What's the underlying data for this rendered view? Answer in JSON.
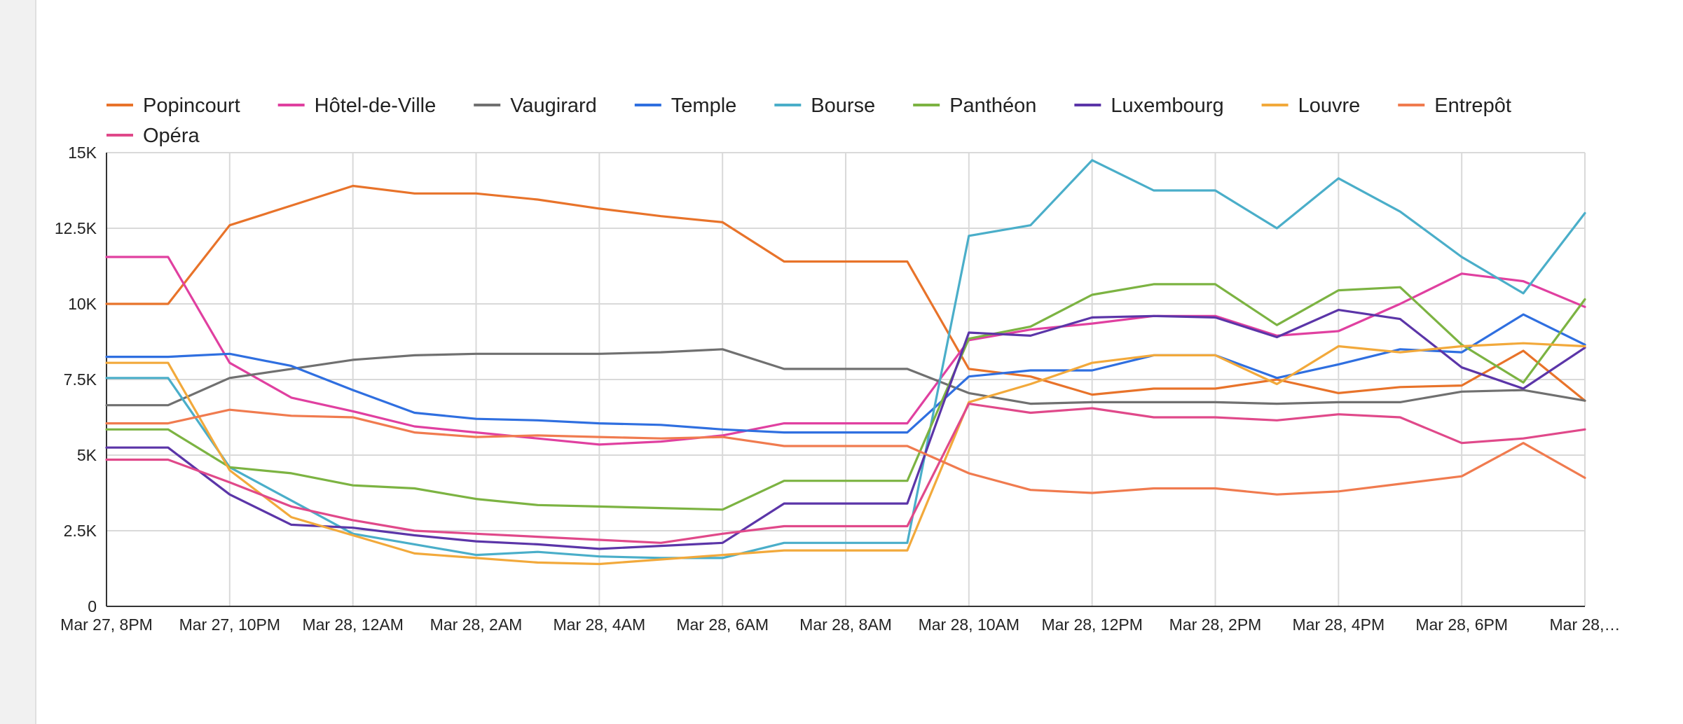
{
  "chart_data": {
    "type": "line",
    "title": "",
    "xlabel": "",
    "ylabel": "",
    "ylim": [
      0,
      15000
    ],
    "y_ticks": [
      0,
      2500,
      5000,
      7500,
      10000,
      12500,
      15000
    ],
    "y_tick_labels": [
      "0",
      "2.5K",
      "5K",
      "7.5K",
      "10K",
      "12.5K",
      "15K"
    ],
    "x": [
      "Mar 27, 8PM",
      "Mar 27, 9PM",
      "Mar 27, 10PM",
      "Mar 27, 11PM",
      "Mar 28, 12AM",
      "Mar 28, 1AM",
      "Mar 28, 2AM",
      "Mar 28, 3AM",
      "Mar 28, 4AM",
      "Mar 28, 5AM",
      "Mar 28, 6AM",
      "Mar 28, 7AM",
      "Mar 28, 8AM",
      "Mar 28, 9AM",
      "Mar 28, 10AM",
      "Mar 28, 11AM",
      "Mar 28, 12PM",
      "Mar 28, 1PM",
      "Mar 28, 2PM",
      "Mar 28, 3PM",
      "Mar 28, 4PM",
      "Mar 28, 5PM",
      "Mar 28, 6PM",
      "Mar 28, 7PM",
      "Mar 28, 8PM"
    ],
    "x_tick_labels": [
      "Mar 27, 8PM",
      "Mar 27, 10PM",
      "Mar 28, 12AM",
      "Mar 28, 2AM",
      "Mar 28, 4AM",
      "Mar 28, 6AM",
      "Mar 28, 8AM",
      "Mar 28, 10AM",
      "Mar 28, 12PM",
      "Mar 28, 2PM",
      "Mar 28, 4PM",
      "Mar 28, 6PM",
      "Mar 28,…"
    ],
    "x_tick_index": [
      0,
      2,
      4,
      6,
      8,
      10,
      12,
      14,
      16,
      18,
      20,
      22,
      24
    ],
    "grid": true,
    "legend_position": "top",
    "series": [
      {
        "name": "Popincourt",
        "color": "#e8732a",
        "values": [
          10000,
          10000,
          12600,
          13250,
          13900,
          13650,
          13650,
          13450,
          13150,
          12900,
          12700,
          11400,
          11400,
          11400,
          7850,
          7600,
          7000,
          7200,
          7200,
          7500,
          7050,
          7250,
          7300,
          8450,
          6800
        ]
      },
      {
        "name": "Hôtel-de-Ville",
        "color": "#e040a0",
        "values": [
          11550,
          11550,
          8050,
          6900,
          6450,
          5950,
          5750,
          5550,
          5350,
          5450,
          5650,
          6050,
          6050,
          6050,
          8800,
          9150,
          9350,
          9600,
          9600,
          8950,
          9100,
          10000,
          11000,
          10750,
          9900
        ]
      },
      {
        "name": "Vaugirard",
        "color": "#707070",
        "values": [
          6650,
          6650,
          7550,
          7850,
          8150,
          8300,
          8350,
          8350,
          8350,
          8400,
          8500,
          7850,
          7850,
          7850,
          7050,
          6700,
          6750,
          6750,
          6750,
          6700,
          6750,
          6750,
          7100,
          7150,
          6800
        ]
      },
      {
        "name": "Temple",
        "color": "#2f6fe0",
        "values": [
          8250,
          8250,
          8350,
          7950,
          7150,
          6400,
          6200,
          6150,
          6050,
          6000,
          5850,
          5750,
          5750,
          5750,
          7600,
          7800,
          7800,
          8300,
          8300,
          7550,
          8000,
          8500,
          8400,
          9650,
          8650
        ]
      },
      {
        "name": "Bourse",
        "color": "#4aaec9",
        "values": [
          7550,
          7550,
          4600,
          3500,
          2400,
          2050,
          1700,
          1800,
          1650,
          1600,
          1600,
          2100,
          2100,
          2100,
          12250,
          12600,
          14750,
          13750,
          13750,
          12500,
          14150,
          13050,
          11550,
          10350,
          13000
        ]
      },
      {
        "name": "Panthéon",
        "color": "#7cb342",
        "values": [
          5850,
          5850,
          4600,
          4400,
          4000,
          3900,
          3550,
          3350,
          3300,
          3250,
          3200,
          4150,
          4150,
          4150,
          8850,
          9250,
          10300,
          10650,
          10650,
          9300,
          10450,
          10550,
          8650,
          7400,
          10150
        ]
      },
      {
        "name": "Luxembourg",
        "color": "#5b35a8",
        "values": [
          5250,
          5250,
          3700,
          2700,
          2600,
          2350,
          2150,
          2050,
          1900,
          2000,
          2100,
          3400,
          3400,
          3400,
          9050,
          8950,
          9550,
          9600,
          9550,
          8900,
          9800,
          9500,
          7900,
          7200,
          8550
        ]
      },
      {
        "name": "Louvre",
        "color": "#f2a93b",
        "values": [
          8050,
          8050,
          4500,
          2950,
          2350,
          1750,
          1600,
          1450,
          1400,
          1550,
          1700,
          1850,
          1850,
          1850,
          6750,
          7350,
          8050,
          8300,
          8300,
          7350,
          8600,
          8400,
          8600,
          8700,
          8600
        ]
      },
      {
        "name": "Entrepôt",
        "color": "#f07b4f",
        "values": [
          6050,
          6050,
          6500,
          6300,
          6250,
          5750,
          5600,
          5650,
          5600,
          5550,
          5600,
          5300,
          5300,
          5300,
          4400,
          3850,
          3750,
          3900,
          3900,
          3700,
          3800,
          4050,
          4300,
          5400,
          4250
        ]
      },
      {
        "name": "Opéra",
        "color": "#e0498a",
        "values": [
          4850,
          4850,
          4100,
          3300,
          2850,
          2500,
          2400,
          2300,
          2200,
          2100,
          2400,
          2650,
          2650,
          2650,
          6700,
          6400,
          6550,
          6250,
          6250,
          6150,
          6350,
          6250,
          5400,
          5550,
          5850
        ]
      }
    ]
  }
}
